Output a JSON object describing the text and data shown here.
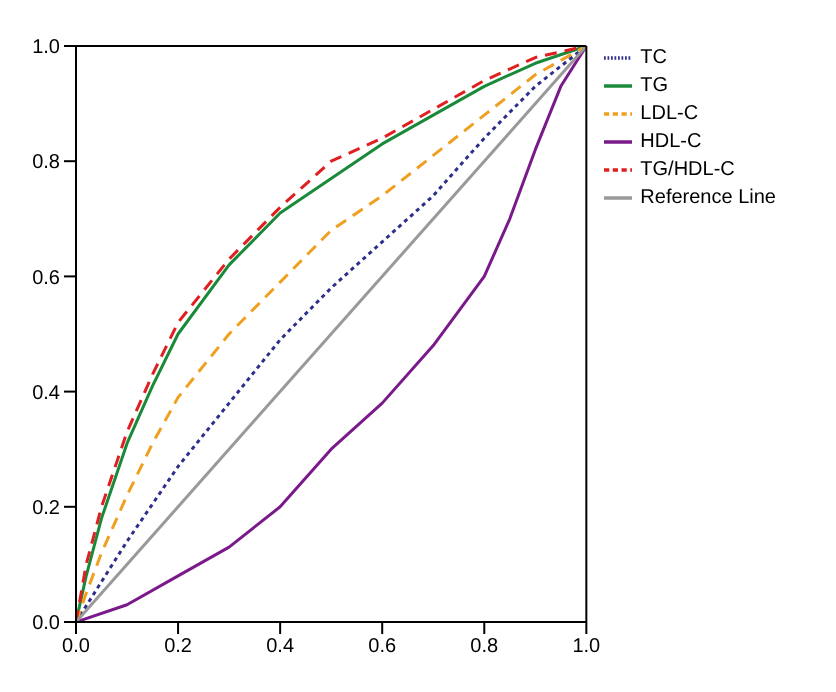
{
  "chart_data": {
    "type": "line",
    "xlim": [
      0,
      1
    ],
    "ylim": [
      0,
      1
    ],
    "xticks": [
      {
        "value": 0,
        "label": "0.0"
      },
      0.2,
      0.4,
      0.6,
      0.8,
      {
        "value": 1,
        "label": "1.0"
      }
    ],
    "yticks": [
      {
        "value": 0,
        "label": "0.0"
      },
      0.2,
      0.4,
      0.6,
      0.8,
      {
        "value": 1,
        "label": "1.0"
      }
    ],
    "legend": "top right",
    "marker": "none",
    "series": [
      {
        "name": "TC",
        "color": "#2e2e8c",
        "line_style": "dotted",
        "x": [
          0,
          0.05,
          0.1,
          0.2,
          0.3,
          0.4,
          0.5,
          0.6,
          0.7,
          0.8,
          0.9,
          1
        ],
        "values": [
          0,
          0.07,
          0.14,
          0.27,
          0.38,
          0.49,
          0.58,
          0.66,
          0.74,
          0.84,
          0.93,
          1
        ]
      },
      {
        "name": "TG",
        "color": "#1a8a3a",
        "line_style": "solid",
        "x": [
          0,
          0.02,
          0.05,
          0.1,
          0.15,
          0.2,
          0.3,
          0.4,
          0.5,
          0.6,
          0.7,
          0.8,
          0.9,
          1
        ],
        "values": [
          0,
          0.08,
          0.18,
          0.31,
          0.41,
          0.5,
          0.62,
          0.71,
          0.77,
          0.83,
          0.88,
          0.93,
          0.97,
          1
        ]
      },
      {
        "name": "LDL-C",
        "color": "#f0a020",
        "line_style": "dashed",
        "x": [
          0,
          0.02,
          0.05,
          0.1,
          0.15,
          0.2,
          0.3,
          0.4,
          0.5,
          0.6,
          0.7,
          0.8,
          0.9,
          1
        ],
        "values": [
          0,
          0.05,
          0.12,
          0.22,
          0.31,
          0.39,
          0.5,
          0.59,
          0.68,
          0.74,
          0.81,
          0.88,
          0.95,
          1
        ]
      },
      {
        "name": "HDL-C",
        "color": "#7a1a8a",
        "line_style": "solid",
        "x": [
          0,
          0.1,
          0.2,
          0.3,
          0.4,
          0.5,
          0.6,
          0.7,
          0.8,
          0.85,
          0.9,
          0.95,
          1
        ],
        "values": [
          0,
          0.03,
          0.08,
          0.13,
          0.2,
          0.3,
          0.38,
          0.48,
          0.6,
          0.7,
          0.82,
          0.93,
          1
        ]
      },
      {
        "name": "TG/HDL-C",
        "color": "#e02020",
        "line_style": "dashed",
        "x": [
          0,
          0.02,
          0.05,
          0.1,
          0.15,
          0.2,
          0.3,
          0.4,
          0.5,
          0.6,
          0.7,
          0.8,
          0.9,
          1
        ],
        "values": [
          0,
          0.1,
          0.2,
          0.33,
          0.43,
          0.52,
          0.63,
          0.72,
          0.8,
          0.84,
          0.89,
          0.94,
          0.98,
          1
        ]
      },
      {
        "name": "Reference Line",
        "color": "#999999",
        "line_style": "solid",
        "x": [
          0,
          1
        ],
        "values": [
          0,
          1
        ]
      }
    ]
  }
}
